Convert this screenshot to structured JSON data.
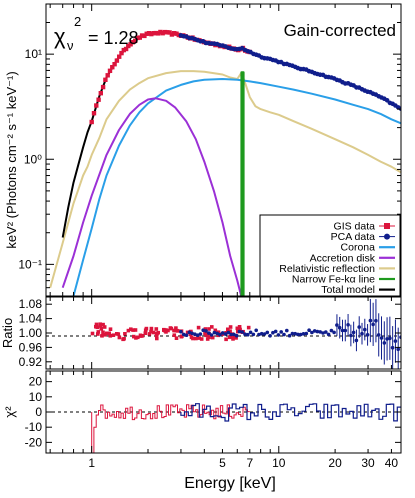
{
  "annotations": {
    "chi_label": "χ",
    "chi_sub": "ν",
    "chi_sup": "2",
    "chi_value": "= 1.28",
    "corner_label": "Gain-corrected"
  },
  "colors": {
    "gis": "#dc143c",
    "pca": "#101e8c",
    "corona": "#2a9fe8",
    "disk": "#9b30d6",
    "reflection": "#dccb8c",
    "iron": "#1e9a1e",
    "total": "#000000"
  },
  "chart_data": [
    {
      "id": "spectrum",
      "type": "line",
      "xscale": "log",
      "yscale": "log",
      "xlim": [
        0.57,
        45
      ],
      "ylim": [
        0.05,
        30
      ],
      "ylabel": "keV² (Photons cm⁻² s⁻¹ keV⁻¹)",
      "yticks": [
        {
          "value": 0.1,
          "label": "10⁻¹"
        },
        {
          "value": 1,
          "label": "10⁰"
        },
        {
          "value": 10,
          "label": "10¹"
        }
      ],
      "legend_position": "bottom-right",
      "legend": [
        {
          "label": "GIS data",
          "key": "gis",
          "style": "marker-square"
        },
        {
          "label": "PCA data",
          "key": "pca",
          "style": "marker-circle"
        },
        {
          "label": "Corona",
          "key": "corona",
          "style": "line"
        },
        {
          "label": "Accretion disk",
          "key": "disk",
          "style": "line"
        },
        {
          "label": "Relativistic reflection",
          "key": "reflection",
          "style": "line"
        },
        {
          "label": "Narrow Fe-kα line",
          "key": "iron",
          "style": "line"
        },
        {
          "label": "Total model",
          "key": "total",
          "style": "line"
        }
      ],
      "series": [
        {
          "key": "total",
          "x": [
            0.7,
            0.75,
            0.8,
            0.85,
            0.9,
            0.95,
            1.0,
            1.1,
            1.2,
            1.4,
            1.6,
            1.8,
            2.0,
            2.3,
            2.6,
            3.0,
            3.5,
            4.0,
            5.0,
            6.0,
            6.4,
            6.6,
            7.0,
            8.0,
            10,
            12,
            15,
            20,
            25,
            30,
            35,
            40,
            45
          ],
          "y": [
            0.18,
            0.35,
            0.6,
            0.9,
            1.3,
            1.8,
            2.3,
            4.0,
            6.0,
            9.5,
            12.5,
            14.5,
            15.5,
            16.0,
            15.8,
            15.2,
            14.0,
            13.0,
            12.0,
            11.0,
            11.5,
            11.0,
            10.5,
            9.5,
            8.5,
            7.6,
            6.8,
            5.8,
            5.0,
            4.4,
            3.9,
            3.4,
            3.0
          ]
        },
        {
          "key": "corona",
          "x": [
            0.8,
            0.9,
            1.0,
            1.1,
            1.2,
            1.4,
            1.6,
            1.8,
            2.0,
            2.5,
            3.0,
            3.5,
            4.0,
            5.0,
            6.0,
            7.0,
            8.0,
            10,
            12,
            15,
            20,
            25,
            30,
            35,
            40,
            45
          ],
          "y": [
            0.05,
            0.11,
            0.22,
            0.42,
            0.7,
            1.35,
            2.1,
            2.8,
            3.4,
            4.5,
            5.1,
            5.5,
            5.7,
            5.8,
            5.7,
            5.5,
            5.3,
            4.9,
            4.6,
            4.2,
            3.7,
            3.3,
            3.0,
            2.7,
            2.4,
            2.2
          ]
        },
        {
          "key": "disk",
          "x": [
            0.7,
            0.8,
            0.9,
            1.0,
            1.2,
            1.4,
            1.6,
            1.8,
            2.0,
            2.2,
            2.5,
            2.8,
            3.2,
            3.6,
            4.0,
            4.5,
            5.0,
            5.5,
            6.0,
            6.3
          ],
          "y": [
            0.06,
            0.12,
            0.25,
            0.45,
            1.1,
            1.9,
            2.7,
            3.3,
            3.7,
            3.8,
            3.6,
            3.1,
            2.3,
            1.55,
            0.95,
            0.5,
            0.25,
            0.12,
            0.07,
            0.05
          ]
        },
        {
          "key": "reflection",
          "x": [
            0.6,
            0.65,
            0.7,
            0.75,
            0.8,
            0.85,
            0.9,
            0.95,
            1.0,
            1.1,
            1.2,
            1.4,
            1.6,
            1.8,
            2.0,
            2.5,
            3.0,
            3.5,
            4.0,
            5.0,
            5.5,
            6.0,
            6.3,
            6.5,
            7.0,
            7.5,
            8.0,
            9.0,
            10,
            12,
            15,
            20,
            25,
            30,
            35,
            40,
            45
          ],
          "y": [
            0.06,
            0.1,
            0.16,
            0.25,
            0.38,
            0.52,
            0.7,
            0.85,
            1.1,
            1.6,
            2.4,
            3.6,
            4.6,
            5.3,
            5.9,
            6.6,
            6.9,
            6.9,
            6.8,
            6.4,
            6.0,
            5.8,
            6.6,
            5.8,
            3.9,
            3.2,
            3.0,
            2.8,
            2.65,
            2.3,
            1.95,
            1.55,
            1.3,
            1.1,
            0.95,
            0.85,
            0.75
          ]
        },
        {
          "key": "iron",
          "x": [
            6.32,
            6.32,
            6.48,
            6.48
          ],
          "y": [
            0.05,
            6.7,
            6.7,
            0.05
          ]
        }
      ],
      "data_gis": {
        "x_range": [
          1.0,
          7.0
        ],
        "n_points": 70
      },
      "data_pca": {
        "x_range": [
          3.0,
          45
        ],
        "n_points": 80
      }
    },
    {
      "id": "ratio",
      "type": "scatter",
      "xscale": "log",
      "xlim": [
        0.57,
        45
      ],
      "ylim": [
        0.9,
        1.1
      ],
      "ylabel": "Ratio",
      "yticks": [
        {
          "value": 0.92,
          "label": "0.92"
        },
        {
          "value": 0.96,
          "label": "0.96"
        },
        {
          "value": 1.0,
          "label": "1.00"
        },
        {
          "value": 1.04,
          "label": "1.04"
        },
        {
          "value": 1.08,
          "label": "1.08"
        }
      ],
      "reference_line": 1.0
    },
    {
      "id": "residuals",
      "type": "line",
      "xscale": "log",
      "xlim": [
        0.57,
        45
      ],
      "ylim": [
        -27,
        27
      ],
      "ylabel": "χ²",
      "xlabel": "Energy [keV]",
      "yticks": [
        {
          "value": -20,
          "label": "-20"
        },
        {
          "value": -10,
          "label": "-10"
        },
        {
          "value": 0,
          "label": "0"
        },
        {
          "value": 10,
          "label": "10"
        },
        {
          "value": 20,
          "label": "20"
        }
      ],
      "xticks": [
        {
          "value": 1,
          "label": "1"
        },
        {
          "value": 5,
          "label": "5"
        },
        {
          "value": 7,
          "label": "7"
        },
        {
          "value": 10,
          "label": "10"
        },
        {
          "value": 20,
          "label": "20"
        },
        {
          "value": 30,
          "label": "30"
        },
        {
          "value": 40,
          "label": "40"
        }
      ],
      "reference_line": 0
    }
  ]
}
